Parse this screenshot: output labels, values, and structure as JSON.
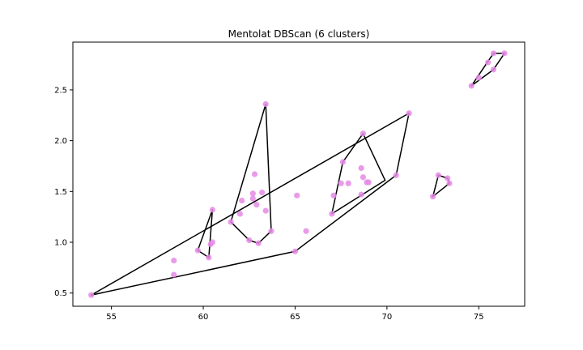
{
  "chart_data": {
    "type": "scatter",
    "title": "Mentolat DBScan (6 clusters)",
    "xlabel": "",
    "ylabel": "",
    "xlim": [
      52.9,
      77.5
    ],
    "ylim": [
      0.37,
      2.97
    ],
    "xticks": [
      55,
      60,
      65,
      70,
      75
    ],
    "xtick_labels": [
      "55",
      "60",
      "65",
      "70",
      "75"
    ],
    "yticks": [
      0.5,
      1.0,
      1.5,
      2.0,
      2.5
    ],
    "ytick_labels": [
      "0.5",
      "1.0",
      "1.5",
      "2.0",
      "2.5"
    ],
    "grid": false,
    "point_color": "#e58ae5",
    "hull_color": "#000000",
    "points": [
      {
        "x": 53.9,
        "y": 0.48
      },
      {
        "x": 58.4,
        "y": 0.82
      },
      {
        "x": 58.4,
        "y": 0.68
      },
      {
        "x": 59.7,
        "y": 0.92
      },
      {
        "x": 60.3,
        "y": 0.85
      },
      {
        "x": 60.5,
        "y": 1.0
      },
      {
        "x": 60.5,
        "y": 1.32
      },
      {
        "x": 60.4,
        "y": 0.98
      },
      {
        "x": 61.5,
        "y": 1.2
      },
      {
        "x": 62.0,
        "y": 1.28
      },
      {
        "x": 62.1,
        "y": 1.41
      },
      {
        "x": 62.5,
        "y": 1.02
      },
      {
        "x": 62.7,
        "y": 1.48
      },
      {
        "x": 62.7,
        "y": 1.43
      },
      {
        "x": 62.8,
        "y": 1.67
      },
      {
        "x": 62.9,
        "y": 1.37
      },
      {
        "x": 63.0,
        "y": 0.99
      },
      {
        "x": 63.2,
        "y": 1.49
      },
      {
        "x": 63.4,
        "y": 1.31
      },
      {
        "x": 63.7,
        "y": 1.11
      },
      {
        "x": 63.4,
        "y": 2.36
      },
      {
        "x": 65.0,
        "y": 0.91
      },
      {
        "x": 65.1,
        "y": 1.46
      },
      {
        "x": 65.6,
        "y": 1.11
      },
      {
        "x": 67.0,
        "y": 1.28
      },
      {
        "x": 67.1,
        "y": 1.46
      },
      {
        "x": 67.5,
        "y": 1.58
      },
      {
        "x": 67.6,
        "y": 1.79
      },
      {
        "x": 67.9,
        "y": 1.58
      },
      {
        "x": 68.6,
        "y": 1.73
      },
      {
        "x": 68.7,
        "y": 1.64
      },
      {
        "x": 68.7,
        "y": 2.07
      },
      {
        "x": 68.9,
        "y": 1.59
      },
      {
        "x": 69.0,
        "y": 1.59
      },
      {
        "x": 68.6,
        "y": 1.47
      },
      {
        "x": 70.5,
        "y": 1.66
      },
      {
        "x": 71.2,
        "y": 2.27
      },
      {
        "x": 72.5,
        "y": 1.45
      },
      {
        "x": 72.8,
        "y": 1.66
      },
      {
        "x": 73.3,
        "y": 1.63
      },
      {
        "x": 73.4,
        "y": 1.58
      },
      {
        "x": 74.6,
        "y": 2.54
      },
      {
        "x": 75.0,
        "y": 2.62
      },
      {
        "x": 75.5,
        "y": 2.77
      },
      {
        "x": 75.8,
        "y": 2.7
      },
      {
        "x": 75.8,
        "y": 2.86
      },
      {
        "x": 76.4,
        "y": 2.86
      }
    ],
    "hulls": [
      [
        [
          53.9,
          0.48
        ],
        [
          65.0,
          0.91
        ],
        [
          70.5,
          1.66
        ],
        [
          71.2,
          2.27
        ]
      ],
      [
        [
          59.7,
          0.92
        ],
        [
          60.3,
          0.85
        ],
        [
          60.5,
          1.32
        ]
      ],
      [
        [
          61.5,
          1.2
        ],
        [
          62.5,
          1.02
        ],
        [
          63.0,
          0.99
        ],
        [
          63.7,
          1.11
        ],
        [
          63.4,
          2.36
        ]
      ],
      [
        [
          67.0,
          1.28
        ],
        [
          69.9,
          1.61
        ],
        [
          68.7,
          2.07
        ],
        [
          67.6,
          1.79
        ]
      ],
      [
        [
          72.5,
          1.45
        ],
        [
          73.4,
          1.58
        ],
        [
          73.3,
          1.63
        ],
        [
          72.8,
          1.66
        ]
      ],
      [
        [
          74.6,
          2.54
        ],
        [
          75.8,
          2.7
        ],
        [
          76.4,
          2.86
        ],
        [
          75.8,
          2.86
        ]
      ]
    ]
  }
}
